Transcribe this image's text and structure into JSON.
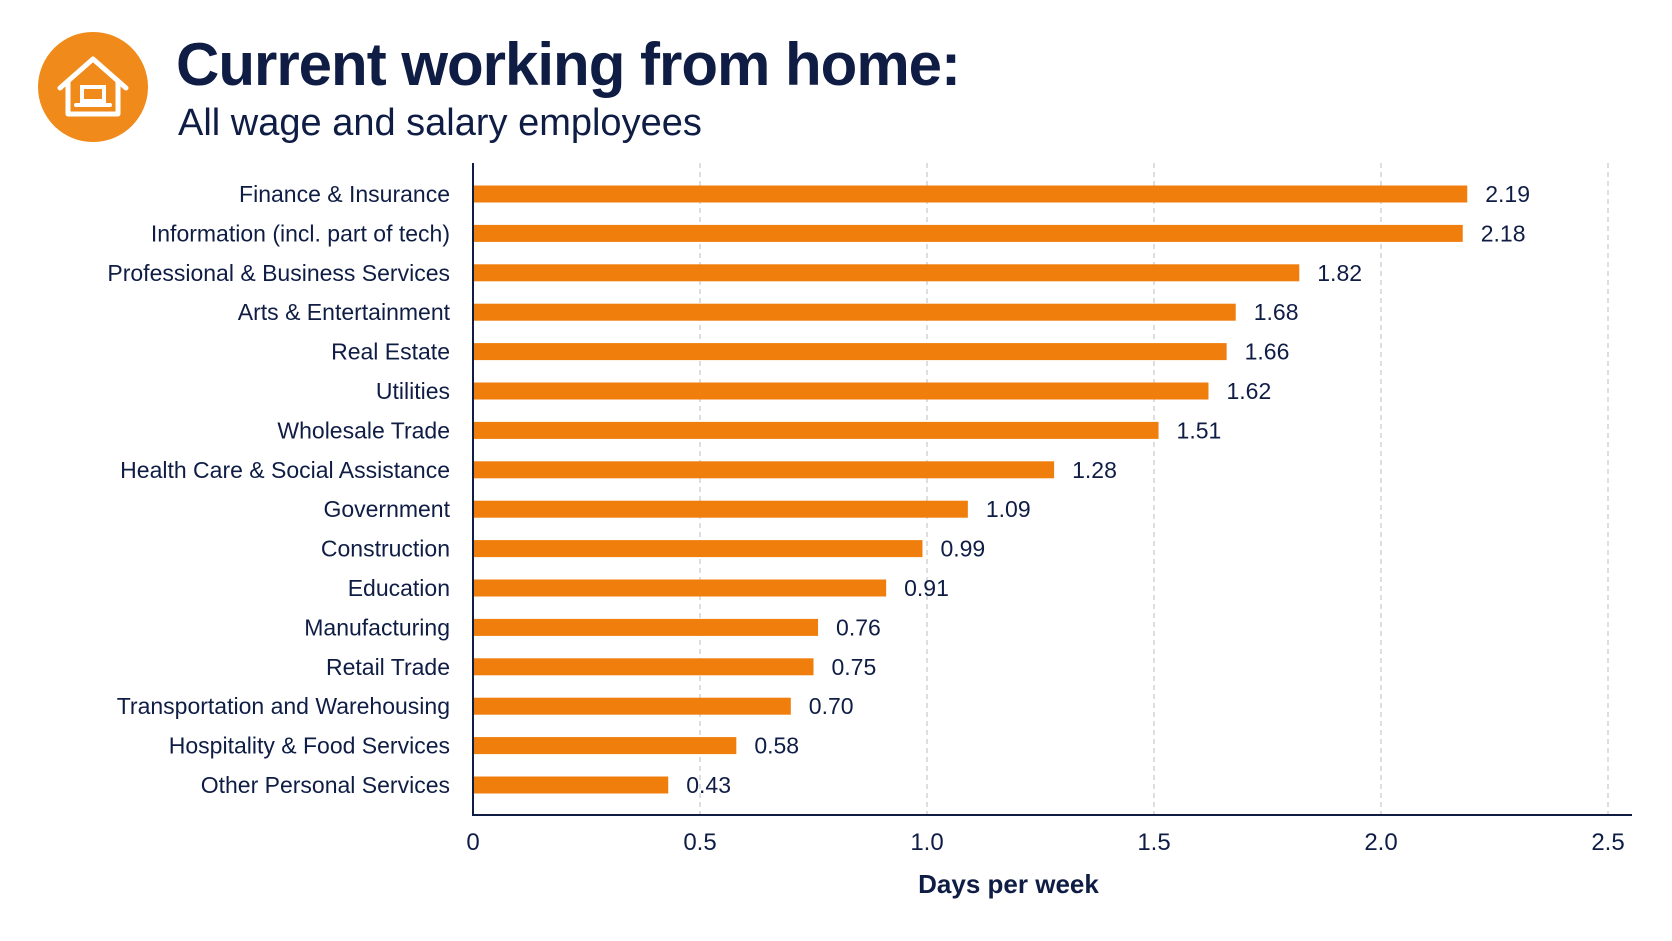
{
  "header": {
    "title": "Current working from home:",
    "subtitle": "All wage and salary employees",
    "icon": "home-icon",
    "accent_color": "#f07e0c"
  },
  "chart_data": {
    "type": "bar",
    "orientation": "horizontal",
    "categories": [
      "Finance & Insurance",
      "Information (incl. part of tech)",
      "Professional & Business Services",
      "Arts & Entertainment",
      "Real Estate",
      "Utilities",
      "Wholesale Trade",
      "Health Care & Social Assistance",
      "Government",
      "Construction",
      "Education",
      "Manufacturing",
      "Retail Trade",
      "Transportation and Warehousing",
      "Hospitality & Food Services",
      "Other Personal Services"
    ],
    "values": [
      2.19,
      2.18,
      1.82,
      1.68,
      1.66,
      1.62,
      1.51,
      1.28,
      1.09,
      0.99,
      0.91,
      0.76,
      0.75,
      0.7,
      0.58,
      0.43
    ],
    "value_labels": [
      "2.19",
      "2.18",
      "1.82",
      "1.68",
      "1.66",
      "1.62",
      "1.51",
      "1.28",
      "1.09",
      "0.99",
      "0.91",
      "0.76",
      "0.75",
      "0.70",
      "0.58",
      "0.43"
    ],
    "xlabel": "Days per week",
    "ylabel": "",
    "xlim": [
      0,
      2.5
    ],
    "xticks": [
      0,
      0.5,
      1.0,
      1.5,
      2.0,
      2.5
    ],
    "xtick_labels": [
      "0",
      "0.5",
      "1.0",
      "1.5",
      "2.0",
      "2.5"
    ],
    "grid": "vertical dashed",
    "bar_color": "#f07e0c"
  }
}
